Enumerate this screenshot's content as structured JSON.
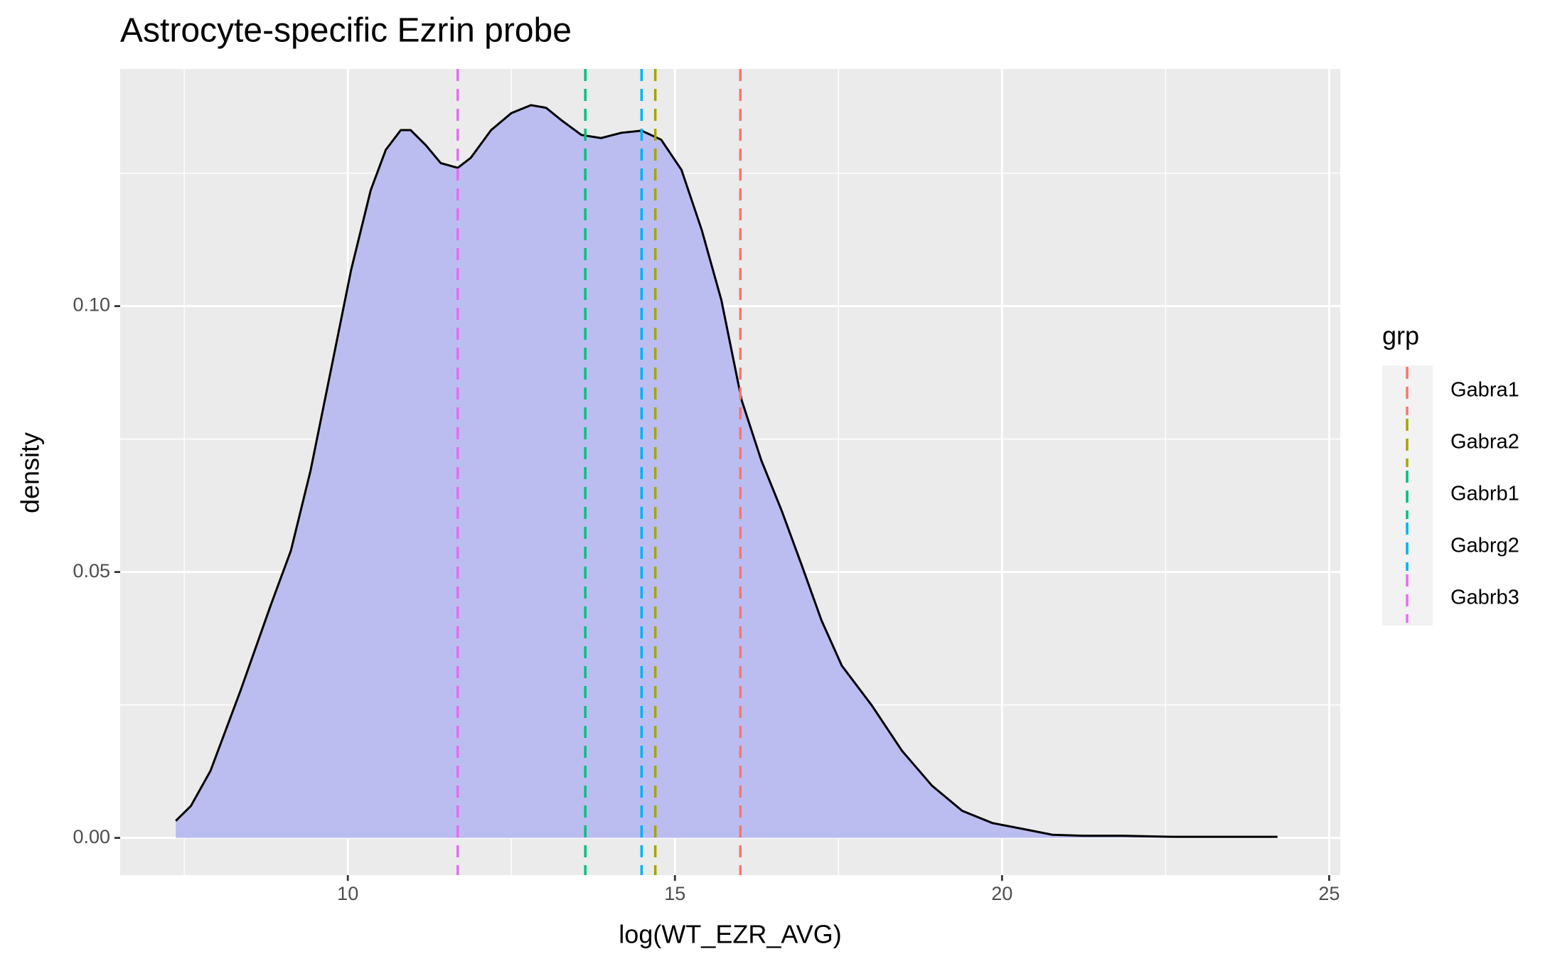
{
  "chart_data": {
    "type": "density",
    "title": "Astrocyte-specific Ezrin probe",
    "x_label": "log(WT_EZR_AVG)",
    "y_label": "density",
    "x": [
      7.37,
      7.6,
      7.9,
      8.36,
      8.82,
      9.13,
      9.43,
      9.74,
      10.05,
      10.35,
      10.58,
      10.81,
      10.96,
      11.19,
      11.42,
      11.68,
      11.88,
      12.19,
      12.5,
      12.8,
      13.03,
      13.26,
      13.57,
      13.87,
      14.18,
      14.49,
      14.79,
      15.1,
      15.41,
      15.71,
      16.02,
      16.32,
      16.63,
      16.94,
      17.24,
      17.55,
      18.01,
      18.47,
      18.93,
      19.39,
      19.85,
      20.31,
      20.77,
      21.23,
      21.84,
      22.6,
      23.37,
      24.21
    ],
    "values": [
      0.0032,
      0.006,
      0.0126,
      0.0277,
      0.0437,
      0.054,
      0.0691,
      0.0879,
      0.1068,
      0.1218,
      0.1294,
      0.1331,
      0.1331,
      0.1303,
      0.1269,
      0.126,
      0.1279,
      0.1331,
      0.1363,
      0.1378,
      0.1373,
      0.135,
      0.1322,
      0.1316,
      0.1326,
      0.133,
      0.1313,
      0.1256,
      0.1143,
      0.1011,
      0.0823,
      0.071,
      0.0616,
      0.0512,
      0.0409,
      0.0324,
      0.0249,
      0.0164,
      0.0098,
      0.0051,
      0.0028,
      0.0017,
      0.0006,
      0.0004,
      0.0004,
      0.0002,
      0.0002,
      0.0002
    ],
    "fill_color": "#bbbdf0",
    "line_color": "#000000",
    "legend_title": "grp",
    "series": [
      {
        "name": "Gabra1",
        "color": "#F8766D",
        "value": 16.0
      },
      {
        "name": "Gabra2",
        "color": "#A3A500",
        "value": 14.7
      },
      {
        "name": "Gabrb1",
        "color": "#00BF7D",
        "value": 13.63
      },
      {
        "name": "Gabrg2",
        "color": "#00B0F6",
        "value": 14.49
      },
      {
        "name": "Gabrb3",
        "color": "#E76BF3",
        "value": 11.68
      }
    ],
    "xlim": [
      6.52,
      25.17
    ],
    "ylim": [
      -0.007,
      0.1446
    ],
    "xticks": [
      10,
      15,
      20,
      25
    ],
    "yticks": [
      {
        "value": 0,
        "label": "0.00"
      },
      {
        "value": 0.05,
        "label": "0.05"
      },
      {
        "value": 0.1,
        "label": "0.10"
      }
    ],
    "x_minor_ticks": [
      7.5,
      12.5,
      17.5,
      22.5
    ],
    "y_minor_ticks": [
      0.025,
      0.075,
      0.125
    ],
    "grid": true,
    "legend_position": "right"
  }
}
